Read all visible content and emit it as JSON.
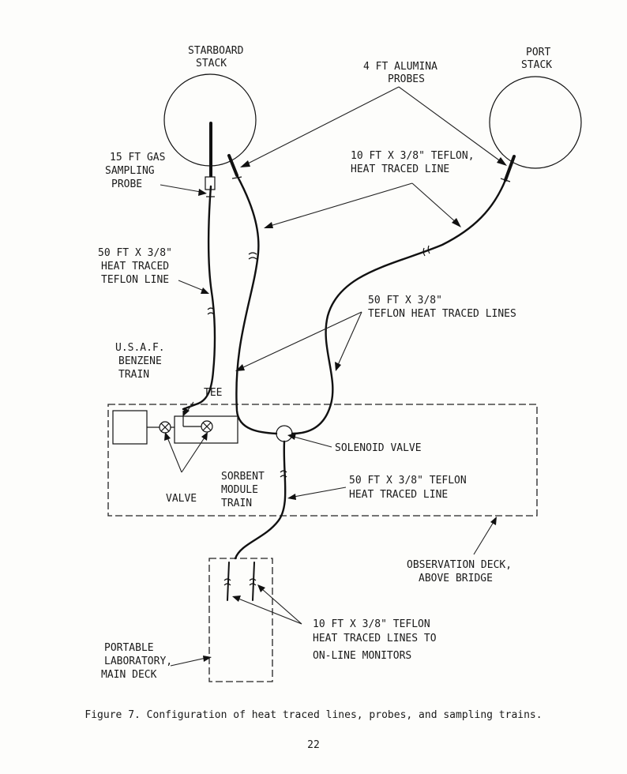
{
  "diagram": {
    "labels": {
      "starboard_stack": [
        "STARBOARD",
        "STACK"
      ],
      "port_stack": [
        "PORT",
        "STACK"
      ],
      "alumina_probes": [
        "4 FT ALUMINA",
        "PROBES"
      ],
      "gas_sampling_probe": [
        "15 FT GAS",
        "SAMPLING",
        "PROBE"
      ],
      "teflon_line_10ft_top": [
        "10 FT X 3/8\" TEFLON,",
        "HEAT TRACED LINE"
      ],
      "heat_traced_50ft_left": [
        "50 FT X 3/8\"",
        "HEAT TRACED",
        "TEFLON LINE"
      ],
      "teflon_lines_50ft": [
        "50 FT X 3/8\"",
        "TEFLON HEAT TRACED LINES"
      ],
      "usaf_benzene_train": [
        "U.S.A.F.",
        "BENZENE",
        "TRAIN"
      ],
      "tee": "TEE",
      "solenoid_valve": "SOLENOID VALVE",
      "valve": "VALVE",
      "sorbent_module_train": [
        "SORBENT",
        "MODULE",
        "TRAIN"
      ],
      "heat_traced_50ft_bottom": [
        "50 FT X 3/8\" TEFLON",
        "HEAT TRACED LINE"
      ],
      "observation_deck": [
        "OBSERVATION DECK,",
        "ABOVE BRIDGE"
      ],
      "teflon_lines_10ft_monitors": [
        "10 FT X 3/8\" TEFLON",
        "HEAT TRACED LINES TO",
        "ON-LINE MONITORS"
      ],
      "portable_laboratory": [
        "PORTABLE",
        "LABORATORY,",
        "MAIN DECK"
      ]
    }
  },
  "caption": "Figure 7.  Configuration of heat traced lines, probes, and sampling trains.",
  "page_number": "22"
}
